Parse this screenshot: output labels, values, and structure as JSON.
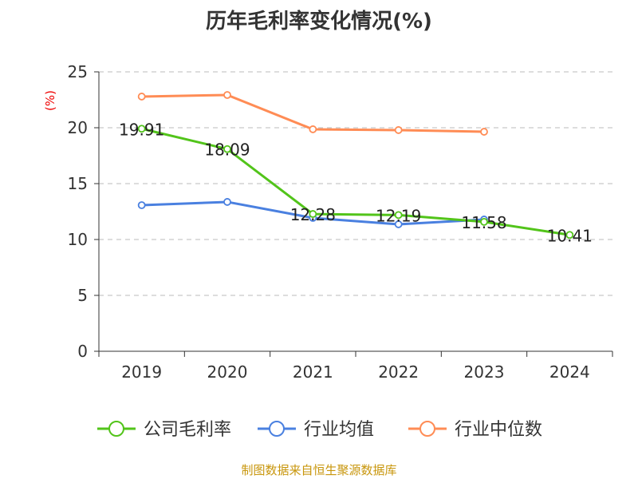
{
  "chart_data": {
    "type": "line",
    "title": "历年毛利率变化情况(%)",
    "ylabel": "(%)",
    "xlabel": "",
    "categories": [
      "2019",
      "2020",
      "2021",
      "2022",
      "2023",
      "2024"
    ],
    "ylim": [
      0,
      25
    ],
    "yticks": [
      0,
      5,
      10,
      15,
      20,
      25
    ],
    "grid": true,
    "legend_position": "bottom",
    "series": [
      {
        "name": "公司毛利率",
        "color": "#52c41a",
        "values": [
          19.91,
          18.09,
          12.28,
          12.19,
          11.58,
          10.41
        ],
        "labels": [
          "19.91",
          "18.09",
          "12.28",
          "12.19",
          "11.58",
          "10.41"
        ]
      },
      {
        "name": "行业均值",
        "color": "#4a80e0",
        "values": [
          13.07,
          13.36,
          11.93,
          11.36,
          11.79,
          null
        ]
      },
      {
        "name": "行业中位数",
        "color": "#ff8c55",
        "values": [
          22.79,
          22.93,
          19.86,
          19.79,
          19.64,
          null
        ]
      }
    ]
  },
  "source": "制图数据来自恒生聚源数据库"
}
